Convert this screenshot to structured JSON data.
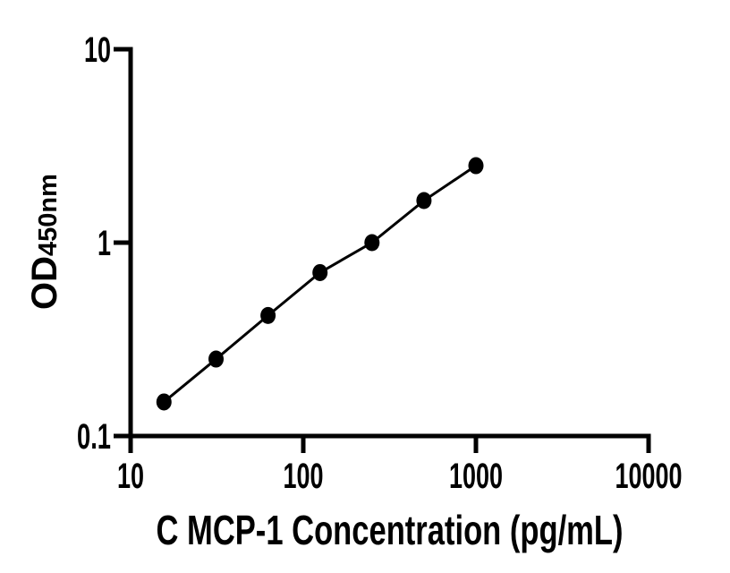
{
  "figure": {
    "background": "#ffffff",
    "foreground": "#000000"
  },
  "chart_data": {
    "type": "scatter",
    "title": "",
    "xlabel": "C MCP-1 Concentration (pg/mL)",
    "ylabel_main": "OD",
    "ylabel_sub": "450nm",
    "xscale": "log",
    "yscale": "log",
    "xlim": [
      10,
      10000
    ],
    "ylim": [
      0.1,
      10
    ],
    "grid": false,
    "legend": null,
    "color": "#000000",
    "marker": "filled-circle",
    "connect_points": true,
    "x": [
      15.6,
      31.25,
      62.5,
      125,
      250,
      500,
      1000
    ],
    "y": [
      0.15,
      0.25,
      0.42,
      0.7,
      1.0,
      1.65,
      2.5
    ],
    "x_axis": {
      "ticks": [
        {
          "value": 10,
          "label": "10"
        },
        {
          "value": 100,
          "label": "100"
        },
        {
          "value": 1000,
          "label": "1000"
        },
        {
          "value": 10000,
          "label": "10000"
        }
      ]
    },
    "y_axis": {
      "ticks": [
        {
          "value": 10,
          "label": "10"
        },
        {
          "value": 1,
          "label": "1"
        },
        {
          "value": 0.1,
          "label": "0.1"
        }
      ]
    }
  }
}
